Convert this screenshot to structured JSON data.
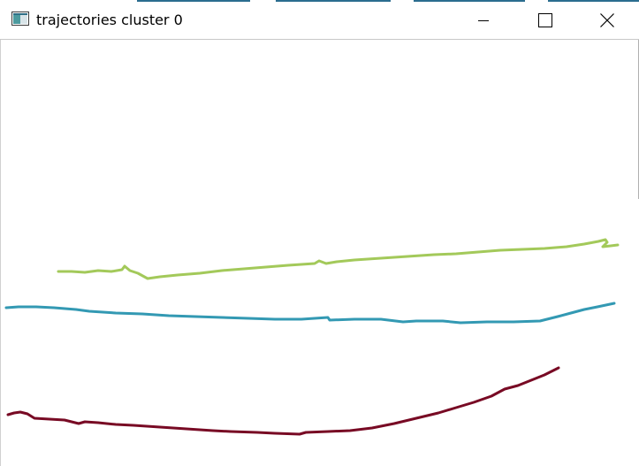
{
  "window": {
    "title": "trajectories cluster 0",
    "app_icon": "app-window-icon",
    "controls": {
      "minimize_icon": "minimize-icon",
      "maximize_icon": "maximize-icon",
      "close_icon": "close-icon"
    }
  },
  "trajectories": [
    {
      "color": "#a3c95a"
    },
    {
      "color": "#3399b3"
    },
    {
      "color": "#780a24"
    }
  ]
}
